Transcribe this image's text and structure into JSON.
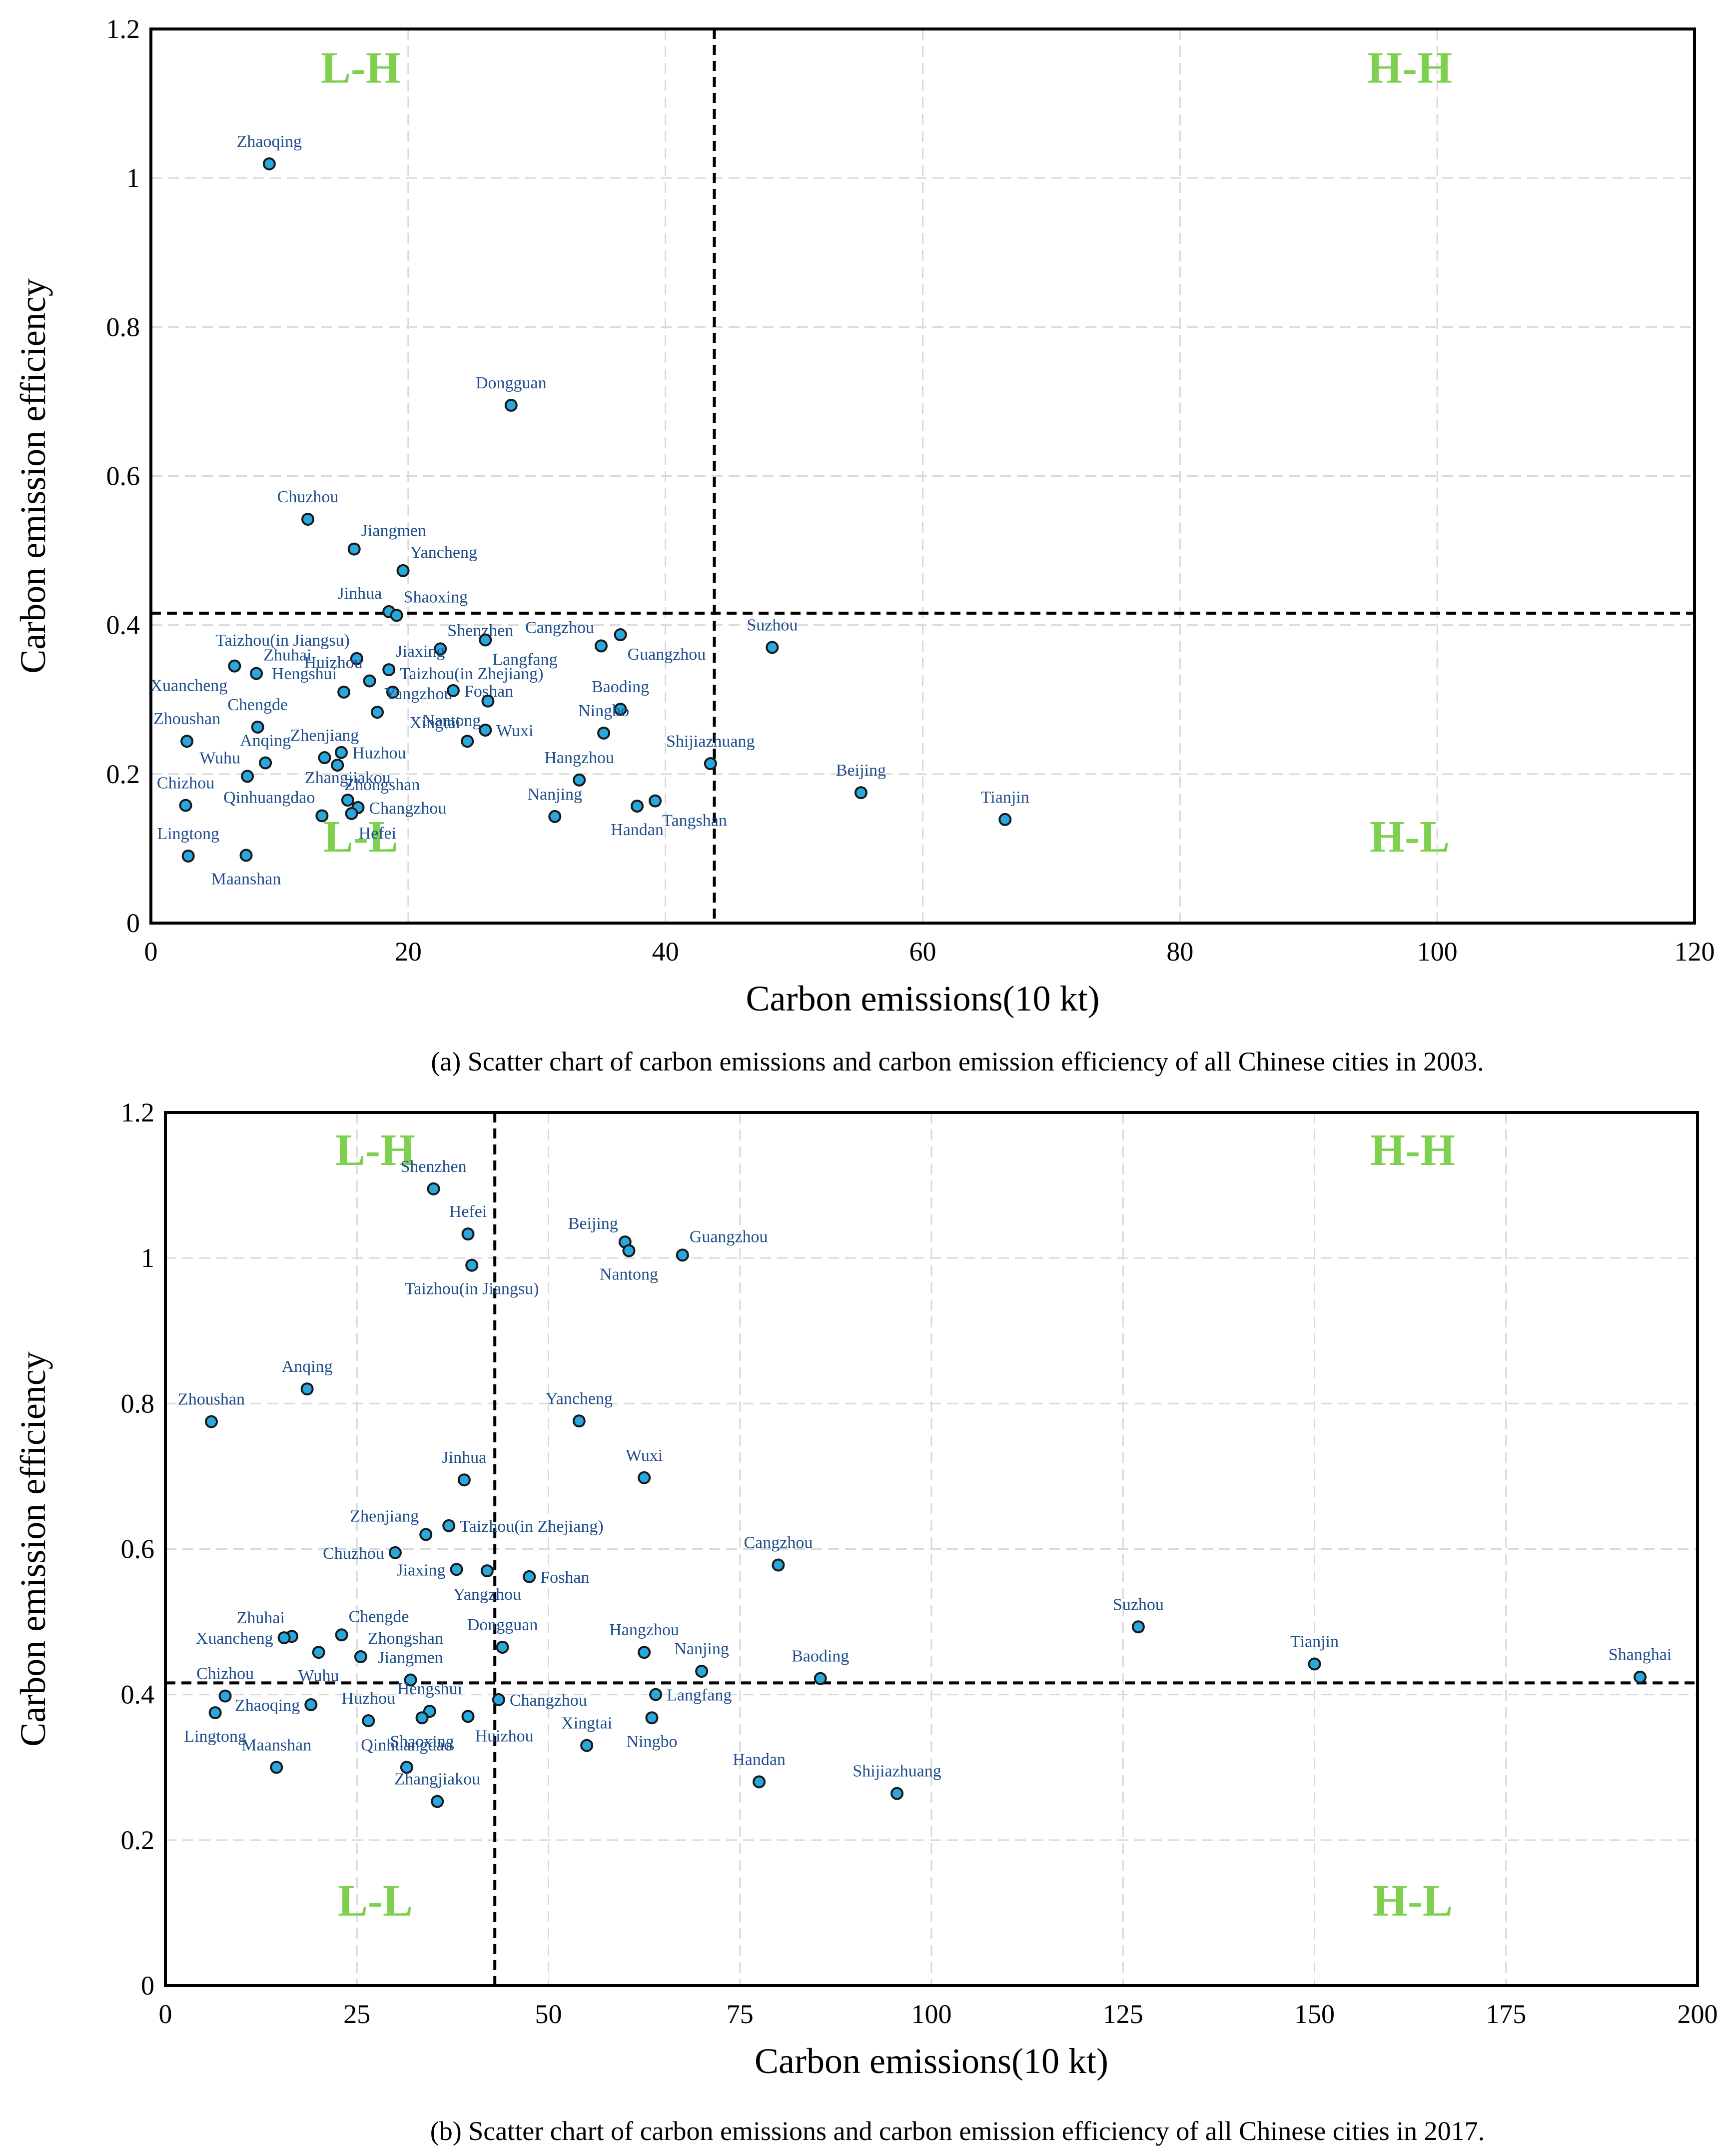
{
  "chart_data": [
    {
      "type": "scatter",
      "title": "",
      "xlabel": "Carbon emissions(10 kt)",
      "ylabel": "Carbon emission efficiency",
      "xlim": [
        0,
        120
      ],
      "ylim": [
        0,
        1.2
      ],
      "xticks": [
        0,
        20,
        40,
        60,
        80,
        100,
        120
      ],
      "yticks": [
        0,
        0.2,
        0.4,
        0.6,
        0.8,
        1,
        1.2
      ],
      "xtick_labels": [
        "0",
        "20",
        "40",
        "60",
        "80",
        "100",
        "120"
      ],
      "ytick_labels": [
        "0",
        "0.2",
        "0.4",
        "0.6",
        "0.8",
        "1",
        "1.2"
      ],
      "grid": true,
      "thresholds": {
        "x": 43.8,
        "y": 0.416
      },
      "quadrant_labels": {
        "top_left": "L-H",
        "top_right": "H-H",
        "bottom_left": "L-L",
        "bottom_right": "H-L"
      },
      "caption": "(a) Scatter chart of carbon emissions and carbon emission efficiency of all Chinese cities in 2003.",
      "points": [
        {
          "name": "Zhaoqing",
          "x": 9.2,
          "y": 1.019,
          "label_pos": "top"
        },
        {
          "name": "Dongguan",
          "x": 28.0,
          "y": 0.695,
          "label_pos": "top"
        },
        {
          "name": "Chuzhou",
          "x": 12.2,
          "y": 0.542,
          "label_pos": "top"
        },
        {
          "name": "Jiangmen",
          "x": 15.8,
          "y": 0.502,
          "label_pos": "upright"
        },
        {
          "name": "Yancheng",
          "x": 19.6,
          "y": 0.473,
          "label_pos": "upright"
        },
        {
          "name": "Jinhua",
          "x": 18.5,
          "y": 0.418,
          "label_pos": "upleft"
        },
        {
          "name": "Shaoxing",
          "x": 19.1,
          "y": 0.413,
          "label_pos": "upright"
        },
        {
          "name": "Taizhou(in Jiangsu)",
          "x": 16.0,
          "y": 0.355,
          "label_pos": "upleft"
        },
        {
          "name": "Shenzhen",
          "x": 22.5,
          "y": 0.368,
          "label_pos": "upright"
        },
        {
          "name": "Langfang",
          "x": 26.0,
          "y": 0.38,
          "label_pos": "downright"
        },
        {
          "name": "Cangzhou",
          "x": 35.0,
          "y": 0.372,
          "label_pos": "upleft"
        },
        {
          "name": "Guangzhou",
          "x": 36.5,
          "y": 0.387,
          "label_pos": "downright"
        },
        {
          "name": "Suzhou",
          "x": 48.3,
          "y": 0.37,
          "label_pos": "top"
        },
        {
          "name": "Zhuhai",
          "x": 8.2,
          "y": 0.335,
          "label_pos": "upright"
        },
        {
          "name": "Xuancheng",
          "x": 6.5,
          "y": 0.345,
          "label_pos": "downleft"
        },
        {
          "name": "Huizhou",
          "x": 17.0,
          "y": 0.325,
          "label_pos": "upleft"
        },
        {
          "name": "Jiaxing",
          "x": 18.5,
          "y": 0.34,
          "label_pos": "upright"
        },
        {
          "name": "Taizhou(in Zhejiang)",
          "x": 18.8,
          "y": 0.31,
          "label_pos": "upright"
        },
        {
          "name": "Hengshui",
          "x": 15.0,
          "y": 0.31,
          "label_pos": "upleft"
        },
        {
          "name": "Yangzhou",
          "x": 17.6,
          "y": 0.283,
          "label_pos": "upright"
        },
        {
          "name": "Foshan",
          "x": 23.5,
          "y": 0.312,
          "label_pos": "right"
        },
        {
          "name": "Nantong",
          "x": 26.2,
          "y": 0.298,
          "label_pos": "downleft"
        },
        {
          "name": "Baoding",
          "x": 36.5,
          "y": 0.287,
          "label_pos": "top"
        },
        {
          "name": "Chengde",
          "x": 8.3,
          "y": 0.263,
          "label_pos": "top"
        },
        {
          "name": "Zhoushan",
          "x": 2.8,
          "y": 0.244,
          "label_pos": "top"
        },
        {
          "name": "Xingtai",
          "x": 24.6,
          "y": 0.244,
          "label_pos": "upleft"
        },
        {
          "name": "Wuxi",
          "x": 26.0,
          "y": 0.259,
          "label_pos": "right"
        },
        {
          "name": "Ningbo",
          "x": 35.2,
          "y": 0.255,
          "label_pos": "top"
        },
        {
          "name": "Zhenjiang",
          "x": 13.5,
          "y": 0.222,
          "label_pos": "top"
        },
        {
          "name": "Huzhou",
          "x": 14.8,
          "y": 0.229,
          "label_pos": "right"
        },
        {
          "name": "Anqing",
          "x": 8.9,
          "y": 0.215,
          "label_pos": "top"
        },
        {
          "name": "Zhongshan",
          "x": 14.5,
          "y": 0.212,
          "label_pos": "downright"
        },
        {
          "name": "Shijiazhuang",
          "x": 43.5,
          "y": 0.214,
          "label_pos": "top"
        },
        {
          "name": "Wuhu",
          "x": 7.5,
          "y": 0.197,
          "label_pos": "upleft"
        },
        {
          "name": "Hangzhou",
          "x": 33.3,
          "y": 0.192,
          "label_pos": "top"
        },
        {
          "name": "Chizhou",
          "x": 2.7,
          "y": 0.158,
          "label_pos": "top"
        },
        {
          "name": "Zhangjiakou",
          "x": 15.3,
          "y": 0.165,
          "label_pos": "top"
        },
        {
          "name": "Changzhou",
          "x": 16.1,
          "y": 0.155,
          "label_pos": "right"
        },
        {
          "name": "Hefei",
          "x": 15.6,
          "y": 0.147,
          "label_pos": "downright"
        },
        {
          "name": "Qinhuangdao",
          "x": 13.3,
          "y": 0.144,
          "label_pos": "upleft"
        },
        {
          "name": "Beijing",
          "x": 55.2,
          "y": 0.175,
          "label_pos": "top"
        },
        {
          "name": "Nanjing",
          "x": 31.4,
          "y": 0.143,
          "label_pos": "top"
        },
        {
          "name": "Tangshan",
          "x": 39.2,
          "y": 0.164,
          "label_pos": "downright"
        },
        {
          "name": "Handan",
          "x": 37.8,
          "y": 0.157,
          "label_pos": "down"
        },
        {
          "name": "Tianjin",
          "x": 66.4,
          "y": 0.139,
          "label_pos": "top"
        },
        {
          "name": "Lingtong",
          "x": 2.9,
          "y": 0.09,
          "label_pos": "top"
        },
        {
          "name": "Maanshan",
          "x": 7.4,
          "y": 0.091,
          "label_pos": "down"
        }
      ]
    },
    {
      "type": "scatter",
      "title": "",
      "xlabel": "Carbon emissions(10 kt)",
      "ylabel": "Carbon emission efficiency",
      "xlim": [
        0,
        200
      ],
      "ylim": [
        0,
        1.2
      ],
      "xticks": [
        0,
        25,
        50,
        75,
        100,
        125,
        150,
        175,
        200
      ],
      "yticks": [
        0,
        0.2,
        0.4,
        0.6,
        0.8,
        1,
        1.2
      ],
      "xtick_labels": [
        "0",
        "25",
        "50",
        "75",
        "100",
        "125",
        "150",
        "175",
        "200"
      ],
      "ytick_labels": [
        "0",
        "0.2",
        "0.4",
        "0.6",
        "0.8",
        "1",
        "1.2"
      ],
      "grid": true,
      "thresholds": {
        "x": 43.0,
        "y": 0.416
      },
      "quadrant_labels": {
        "top_left": "L-H",
        "top_right": "H-H",
        "bottom_left": "L-L",
        "bottom_right": "H-L"
      },
      "caption": "(b) Scatter chart of carbon emissions and carbon emission efficiency of all Chinese cities in 2017.",
      "points": [
        {
          "name": "Shenzhen",
          "x": 35.0,
          "y": 1.095,
          "label_pos": "top"
        },
        {
          "name": "Hefei",
          "x": 39.5,
          "y": 1.033,
          "label_pos": "top"
        },
        {
          "name": "Taizhou(in Jiangsu)",
          "x": 40.0,
          "y": 0.99,
          "label_pos": "down"
        },
        {
          "name": "Beijing",
          "x": 60.0,
          "y": 1.022,
          "label_pos": "upleft"
        },
        {
          "name": "Guangzhou",
          "x": 67.5,
          "y": 1.004,
          "label_pos": "upright"
        },
        {
          "name": "Nantong",
          "x": 60.5,
          "y": 1.01,
          "label_pos": "down"
        },
        {
          "name": "Anqing",
          "x": 18.5,
          "y": 0.82,
          "label_pos": "top"
        },
        {
          "name": "Zhoushan",
          "x": 6.0,
          "y": 0.775,
          "label_pos": "top"
        },
        {
          "name": "Yancheng",
          "x": 54.0,
          "y": 0.776,
          "label_pos": "top"
        },
        {
          "name": "Jinhua",
          "x": 39.0,
          "y": 0.695,
          "label_pos": "top"
        },
        {
          "name": "Wuxi",
          "x": 62.5,
          "y": 0.698,
          "label_pos": "top"
        },
        {
          "name": "Zhenjiang",
          "x": 34.0,
          "y": 0.62,
          "label_pos": "upleft"
        },
        {
          "name": "Taizhou(in Zhejiang)",
          "x": 37.0,
          "y": 0.632,
          "label_pos": "right"
        },
        {
          "name": "Chuzhou",
          "x": 30.0,
          "y": 0.595,
          "label_pos": "left"
        },
        {
          "name": "Cangzhou",
          "x": 80.0,
          "y": 0.578,
          "label_pos": "top"
        },
        {
          "name": "Jiaxing",
          "x": 38.0,
          "y": 0.572,
          "label_pos": "left"
        },
        {
          "name": "Yangzhou",
          "x": 42.0,
          "y": 0.57,
          "label_pos": "down"
        },
        {
          "name": "Foshan",
          "x": 47.5,
          "y": 0.562,
          "label_pos": "right"
        },
        {
          "name": "Suzhou",
          "x": 127.0,
          "y": 0.493,
          "label_pos": "top"
        },
        {
          "name": "Zhuhai",
          "x": 16.5,
          "y": 0.48,
          "label_pos": "upleft"
        },
        {
          "name": "Chengde",
          "x": 23.0,
          "y": 0.482,
          "label_pos": "upright"
        },
        {
          "name": "Xuancheng",
          "x": 15.5,
          "y": 0.478,
          "label_pos": "left"
        },
        {
          "name": "Dongguan",
          "x": 44.0,
          "y": 0.465,
          "label_pos": "top"
        },
        {
          "name": "Hangzhou",
          "x": 62.5,
          "y": 0.458,
          "label_pos": "top"
        },
        {
          "name": "Wuhu",
          "x": 20.0,
          "y": 0.458,
          "label_pos": "down"
        },
        {
          "name": "Zhongshan",
          "x": 25.5,
          "y": 0.452,
          "label_pos": "upright"
        },
        {
          "name": "Nanjing",
          "x": 70.0,
          "y": 0.432,
          "label_pos": "top"
        },
        {
          "name": "Tianjin",
          "x": 150.0,
          "y": 0.442,
          "label_pos": "top"
        },
        {
          "name": "Shanghai",
          "x": 192.5,
          "y": 0.424,
          "label_pos": "top"
        },
        {
          "name": "Baoding",
          "x": 85.5,
          "y": 0.422,
          "label_pos": "top"
        },
        {
          "name": "Jiangmen",
          "x": 32.0,
          "y": 0.42,
          "label_pos": "top"
        },
        {
          "name": "Chizhou",
          "x": 7.8,
          "y": 0.398,
          "label_pos": "top"
        },
        {
          "name": "Changzhou",
          "x": 43.5,
          "y": 0.393,
          "label_pos": "right"
        },
        {
          "name": "Langfang",
          "x": 64.0,
          "y": 0.4,
          "label_pos": "right"
        },
        {
          "name": "Zhaoqing",
          "x": 19.0,
          "y": 0.386,
          "label_pos": "left"
        },
        {
          "name": "Hengshui",
          "x": 34.5,
          "y": 0.377,
          "label_pos": "top"
        },
        {
          "name": "Lingtong",
          "x": 6.5,
          "y": 0.375,
          "label_pos": "down"
        },
        {
          "name": "Huzhou",
          "x": 26.5,
          "y": 0.364,
          "label_pos": "top"
        },
        {
          "name": "Shaoxing",
          "x": 33.5,
          "y": 0.368,
          "label_pos": "down"
        },
        {
          "name": "Huizhou",
          "x": 39.5,
          "y": 0.37,
          "label_pos": "downright"
        },
        {
          "name": "Ningbo",
          "x": 63.5,
          "y": 0.368,
          "label_pos": "down"
        },
        {
          "name": "Xingtai",
          "x": 55.0,
          "y": 0.33,
          "label_pos": "top"
        },
        {
          "name": "Maanshan",
          "x": 14.5,
          "y": 0.3,
          "label_pos": "top"
        },
        {
          "name": "Qinhuangdao",
          "x": 31.5,
          "y": 0.3,
          "label_pos": "top"
        },
        {
          "name": "Handan",
          "x": 77.5,
          "y": 0.28,
          "label_pos": "top"
        },
        {
          "name": "Shijiazhuang",
          "x": 95.5,
          "y": 0.264,
          "label_pos": "top"
        },
        {
          "name": "Zhangjiakou",
          "x": 35.5,
          "y": 0.253,
          "label_pos": "top"
        }
      ]
    }
  ],
  "colors": {
    "marker_fill": "#29a8e0",
    "marker_stroke": "#1a1a1a",
    "point_label": "#1f4e8c",
    "quadrant_label": "#7ed04f",
    "grid": "#d9d9d9",
    "axis": "#000000"
  }
}
